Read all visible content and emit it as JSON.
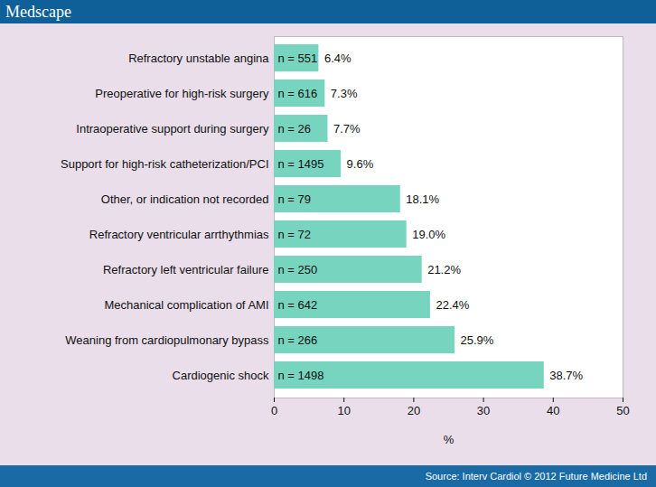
{
  "chart_data": {
    "type": "bar",
    "orientation": "horizontal",
    "header": "Medscape",
    "source": "Source: Interv Cardiol © 2012 Future Medicine Ltd",
    "x_label": "%",
    "categories": [
      "Refractory unstable angina",
      "Preoperative for high-risk surgery",
      "Intraoperative support during surgery",
      "Support for high-risk catheterization/PCI",
      "Other, or indication not recorded",
      "Refractory ventricular arrthythmias",
      "Refractory left ventricular failure",
      "Mechanical complication of AMI",
      "Weaning from cardiopulmonary bypass",
      "Cardiogenic shock"
    ],
    "values": [
      6.4,
      7.3,
      7.7,
      9.6,
      18.1,
      19.0,
      21.2,
      22.4,
      25.9,
      38.7
    ],
    "value_labels": [
      "6.4%",
      "7.3%",
      "7.7%",
      "9.6%",
      "18.1%",
      "19.0%",
      "21.2%",
      "22.4%",
      "25.9%",
      "38.7%"
    ],
    "bar_annotations": [
      "n = 551",
      "n = 616",
      "n = 26",
      "n = 1495",
      "n = 79",
      "n = 72",
      "n = 250",
      "n = 642",
      "n = 266",
      "n = 1498"
    ],
    "color": "#76d4bf",
    "xlim": [
      0,
      50
    ],
    "xticks": [
      0,
      10,
      20,
      30,
      40,
      50
    ],
    "grid": false,
    "data_labels": true
  }
}
